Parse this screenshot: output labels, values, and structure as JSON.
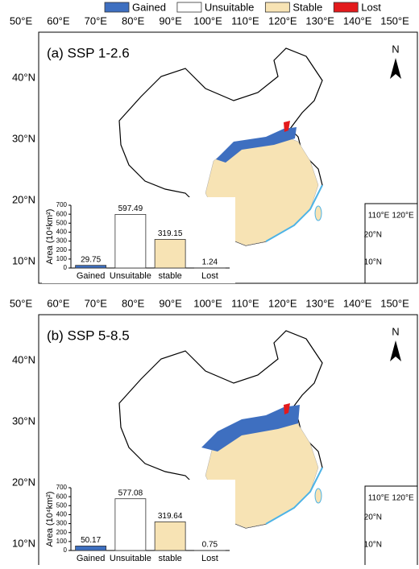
{
  "legend": [
    {
      "name": "Gained",
      "color": "#3e6fc0"
    },
    {
      "name": "Unsuitable",
      "color": "#ffffff"
    },
    {
      "name": "Stable",
      "color": "#f7e3b4"
    },
    {
      "name": "Lost",
      "color": "#e31a1c"
    }
  ],
  "maps": [
    {
      "label": "(a) SSP 1-2.6",
      "north": "N",
      "lon_labels": [
        "50°E",
        "60°E",
        "70°E",
        "80°E",
        "90°E",
        "100°E",
        "110°E",
        "120°E",
        "130°E",
        "140°E",
        "150°E"
      ],
      "lat_labels": [
        "40°N",
        "30°N",
        "20°N",
        "10°N"
      ],
      "inset_lon_labels": [
        "110°E",
        "120°E"
      ],
      "inset_lat_labels": [
        "20°N",
        "10°N"
      ]
    },
    {
      "label": "(b) SSP 5-8.5",
      "north": "N",
      "lon_labels": [
        "50°E",
        "60°E",
        "70°E",
        "80°E",
        "90°E",
        "100°E",
        "110°E",
        "120°E",
        "130°E",
        "140°E",
        "150°E"
      ],
      "lat_labels": [
        "40°N",
        "30°N",
        "20°N",
        "10°N"
      ],
      "inset_lon_labels": [
        "110°E",
        "120°E"
      ],
      "inset_lat_labels": [
        "20°N",
        "10°N"
      ]
    }
  ],
  "chart_data": [
    {
      "type": "bar",
      "y_label": "Area (10⁴km²)",
      "categories": [
        "Gained",
        "Unsuitable",
        "stable",
        "Lost"
      ],
      "values": [
        29.75,
        597.49,
        319.15,
        1.24
      ],
      "colors": [
        "#3e6fc0",
        "#ffffff",
        "#f7e3b4",
        "#e31a1c"
      ],
      "ylim": [
        0,
        700
      ],
      "yticks": [
        0,
        100,
        200,
        300,
        400,
        500,
        600,
        700
      ]
    },
    {
      "type": "bar",
      "y_label": "Area (10⁴km²)",
      "categories": [
        "Gained",
        "Unsuitable",
        "stable",
        "Lost"
      ],
      "values": [
        50.17,
        577.08,
        319.64,
        0.75
      ],
      "colors": [
        "#3e6fc0",
        "#ffffff",
        "#f7e3b4",
        "#e31a1c"
      ],
      "ylim": [
        0,
        700
      ],
      "yticks": [
        0,
        100,
        200,
        300,
        400,
        500,
        600,
        700
      ]
    }
  ]
}
